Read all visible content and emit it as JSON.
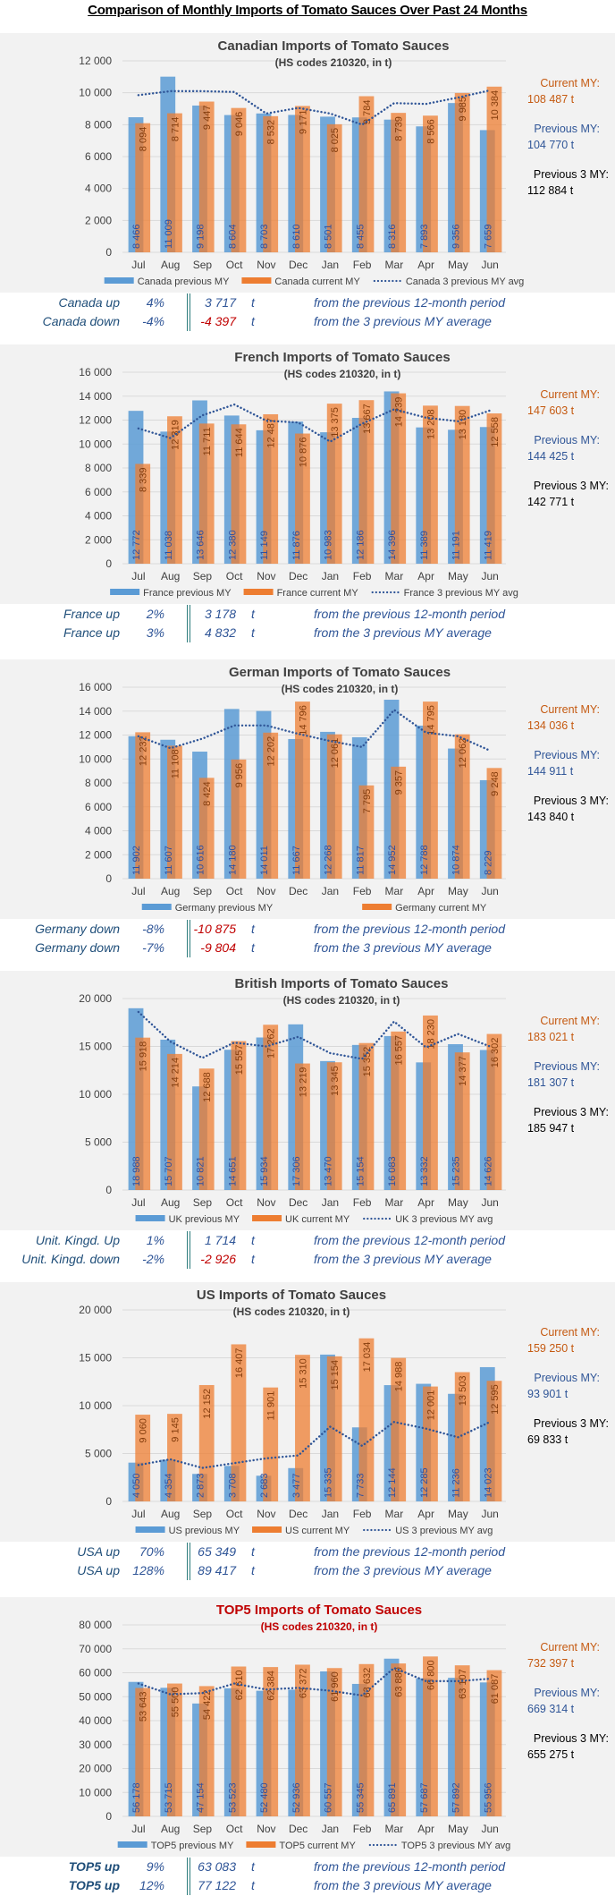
{
  "page_title": "Comparison of Monthly Imports of Tomato Sauces Over Past 24 Months",
  "colors": {
    "previous": "#5b9bd5",
    "current": "#ed7d31",
    "avg_line": "#2f5597",
    "prev_label": "#2f4f9f",
    "cur_label": "#843c0c",
    "negative": "#c00000",
    "top5_title": "#c00000"
  },
  "chart_data": [
    {
      "type": "bar",
      "title": "Canadian  Imports  of  Tomato  Sauces",
      "subtitle": "(HS codes 210320,  in t)",
      "categories": [
        "Jul",
        "Aug",
        "Sep",
        "Oct",
        "Nov",
        "Dec",
        "Jan",
        "Feb",
        "Mar",
        "Apr",
        "May",
        "Jun"
      ],
      "ylim": [
        0,
        12000
      ],
      "yticks": [
        "0",
        "2 000",
        "4 000",
        "6 000",
        "8 000",
        "10 000",
        "12 000"
      ],
      "grid": true,
      "legend": "bottom",
      "series": [
        {
          "name": "Canada previous MY",
          "type": "bar",
          "values": [
            8466,
            11009,
            9198,
            8604,
            8703,
            8610,
            8501,
            8455,
            8316,
            7893,
            9356,
            7659
          ]
        },
        {
          "name": "Canada current MY",
          "type": "bar",
          "values": [
            8094,
            8714,
            9447,
            9046,
            8532,
            9171,
            8025,
            9784,
            8739,
            8566,
            9985,
            10384
          ]
        },
        {
          "name": "Canada 3 previous MY avg",
          "type": "line",
          "values": [
            9850,
            10100,
            10100,
            10050,
            8700,
            9050,
            8700,
            8000,
            9350,
            9300,
            9700,
            10150
          ]
        }
      ]
    },
    {
      "type": "bar",
      "title": "French  Imports  of  Tomato  Sauces",
      "subtitle": "(HS codes 210320,  in t)",
      "categories": [
        "Jul",
        "Aug",
        "Sep",
        "Oct",
        "Nov",
        "Dec",
        "Jan",
        "Feb",
        "Mar",
        "Apr",
        "May",
        "Jun"
      ],
      "ylim": [
        0,
        16000
      ],
      "yticks": [
        "0",
        "2 000",
        "4 000",
        "6 000",
        "8 000",
        "10 000",
        "12 000",
        "14 000",
        "16 000"
      ],
      "grid": true,
      "legend": "bottom",
      "series": [
        {
          "name": "France previous MY",
          "type": "bar",
          "values": [
            12772,
            11038,
            13646,
            12380,
            11149,
            11876,
            10983,
            12186,
            14396,
            11389,
            11191,
            11419
          ]
        },
        {
          "name": "France current MY",
          "type": "bar",
          "values": [
            8339,
            12319,
            11711,
            11644,
            12487,
            10876,
            13375,
            13667,
            14239,
            13208,
            13180,
            12558
          ]
        },
        {
          "name": "France 3 previous MY avg",
          "type": "line",
          "values": [
            11300,
            10500,
            12400,
            13300,
            11950,
            11800,
            10200,
            11700,
            12900,
            12200,
            11900,
            12800
          ]
        }
      ]
    },
    {
      "type": "bar",
      "title": "German  Imports  of  Tomato  Sauces",
      "subtitle": "(HS codes 210320,  in t)",
      "categories": [
        "Jul",
        "Aug",
        "Sep",
        "Oct",
        "Nov",
        "Dec",
        "Jan",
        "Feb",
        "Mar",
        "Apr",
        "May",
        "Jun"
      ],
      "ylim": [
        0,
        16000
      ],
      "yticks": [
        "0",
        "2 000",
        "4 000",
        "6 000",
        "8 000",
        "10 000",
        "12 000",
        "14 000",
        "16 000"
      ],
      "grid": true,
      "legend": "bottom",
      "series": [
        {
          "name": "Germany previous MY",
          "type": "bar",
          "values": [
            11902,
            11607,
            10616,
            14180,
            14011,
            11667,
            12268,
            11817,
            14952,
            12788,
            10874,
            8229
          ]
        },
        {
          "name": "Germany current MY",
          "type": "bar",
          "values": [
            12232,
            11108,
            8424,
            9956,
            12202,
            14796,
            12061,
            7795,
            9357,
            14795,
            12062,
            9248
          ]
        },
        {
          "name": "",
          "type": "line",
          "values": [
            11900,
            10900,
            11700,
            12800,
            12800,
            12100,
            11500,
            11000,
            14100,
            12200,
            11900,
            10700
          ]
        }
      ]
    },
    {
      "type": "bar",
      "title": "British  Imports  of  Tomato  Sauces",
      "subtitle": "(HS codes 210320,  in t)",
      "categories": [
        "Jul",
        "Aug",
        "Sep",
        "Oct",
        "Nov",
        "Dec",
        "Jan",
        "Feb",
        "Mar",
        "Apr",
        "May",
        "Jun"
      ],
      "ylim": [
        0,
        20000
      ],
      "yticks": [
        "0",
        "5 000",
        "10 000",
        "15 000",
        "20 000"
      ],
      "grid": true,
      "legend": "bottom",
      "series": [
        {
          "name": "UK previous MY",
          "type": "bar",
          "values": [
            18988,
            15707,
            10821,
            14651,
            15934,
            17306,
            13470,
            15154,
            16083,
            13332,
            15235,
            14626
          ]
        },
        {
          "name": "UK current MY",
          "type": "bar",
          "values": [
            15918,
            14214,
            12688,
            15557,
            17262,
            13219,
            13345,
            15352,
            16557,
            18230,
            14377,
            16302
          ]
        },
        {
          "name": "UK 3 previous MY avg",
          "type": "line",
          "values": [
            18600,
            15500,
            13800,
            15400,
            15000,
            16000,
            14300,
            13700,
            17600,
            14900,
            16300,
            15000
          ]
        }
      ]
    },
    {
      "type": "bar",
      "title": "US  Imports  of  Tomato  Sauces",
      "subtitle": "(HS codes 210320,  in t)",
      "categories": [
        "Jul",
        "Aug",
        "Sep",
        "Oct",
        "Nov",
        "Dec",
        "Jan",
        "Feb",
        "Mar",
        "Apr",
        "May",
        "Jun"
      ],
      "ylim": [
        0,
        20000
      ],
      "yticks": [
        "0",
        "5 000",
        "10 000",
        "15 000",
        "20 000"
      ],
      "grid": true,
      "legend": "bottom",
      "series": [
        {
          "name": "US previous MY",
          "type": "bar",
          "values": [
            4050,
            4354,
            2873,
            3708,
            2683,
            3477,
            15335,
            7733,
            12144,
            12285,
            11236,
            14023
          ]
        },
        {
          "name": "US current MY",
          "type": "bar",
          "values": [
            9060,
            9145,
            12152,
            16407,
            11901,
            15310,
            15154,
            17034,
            14988,
            12001,
            13503,
            12595
          ]
        },
        {
          "name": "US 3 previous MY avg",
          "type": "line",
          "values": [
            3800,
            4400,
            3500,
            4000,
            4500,
            4800,
            7800,
            5800,
            8300,
            7600,
            6700,
            8300
          ]
        }
      ]
    },
    {
      "type": "bar",
      "title": "TOP5  Imports  of  Tomato  Sauces",
      "subtitle": "(HS codes 210320,  in t)",
      "categories": [
        "Jul",
        "Aug",
        "Sep",
        "Oct",
        "Nov",
        "Dec",
        "Jan",
        "Feb",
        "Mar",
        "Apr",
        "May",
        "Jun"
      ],
      "ylim": [
        0,
        80000
      ],
      "yticks": [
        "0",
        "10 000",
        "20 000",
        "30 000",
        "40 000",
        "50 000",
        "60 000",
        "70 000",
        "80 000"
      ],
      "grid": true,
      "legend": "bottom",
      "series": [
        {
          "name": "TOP5 previous MY",
          "type": "bar",
          "values": [
            56178,
            53715,
            47154,
            53523,
            52480,
            52936,
            60557,
            55345,
            65891,
            57687,
            57892,
            55956
          ]
        },
        {
          "name": "TOP5 current MY",
          "type": "bar",
          "values": [
            53643,
            55500,
            54422,
            62610,
            62384,
            63372,
            61960,
            63632,
            63880,
            66800,
            63107,
            61087
          ]
        },
        {
          "name": "TOP5 3 previous MY avg",
          "type": "line",
          "values": [
            55500,
            51000,
            51500,
            55500,
            53000,
            53700,
            52500,
            50500,
            62000,
            56500,
            56500,
            57500
          ]
        }
      ]
    }
  ],
  "summaries": [
    {
      "current_label": "Current MY:",
      "current_value": "108 487 t",
      "previous_label": "Previous MY:",
      "previous_value": "104 770 t",
      "prev3_label": "Previous 3 MY:",
      "prev3_value": "112 884 t",
      "stats": [
        {
          "label": "Canada up",
          "pct": "4%",
          "value": "3 717",
          "unit": "t",
          "text": "from the previous 12-month period"
        },
        {
          "label": "Canada down",
          "pct": "-4%",
          "value": "-4 397",
          "unit": "t",
          "text": "from the 3 previous MY average"
        }
      ]
    },
    {
      "current_label": "Current MY:",
      "current_value": "147 603 t",
      "previous_label": "Previous MY:",
      "previous_value": "144 425 t",
      "prev3_label": "Previous 3 MY:",
      "prev3_value": "142 771 t",
      "stats": [
        {
          "label": "France up",
          "pct": "2%",
          "value": "3 178",
          "unit": "t",
          "text": "from the previous 12-month period"
        },
        {
          "label": "France up",
          "pct": "3%",
          "value": "4 832",
          "unit": "t",
          "text": "from the 3 previous MY average"
        }
      ]
    },
    {
      "current_label": "Current MY:",
      "current_value": "134 036 t",
      "previous_label": "Previous MY:",
      "previous_value": "144 911 t",
      "prev3_label": "Previous 3 MY:",
      "prev3_value": "143 840 t",
      "stats": [
        {
          "label": "Germany down",
          "pct": "-8%",
          "value": "-10 875",
          "unit": "t",
          "text": "from the previous 12-month period"
        },
        {
          "label": "Germany down",
          "pct": "-7%",
          "value": "-9 804",
          "unit": "t",
          "text": "from the 3 previous MY average"
        }
      ]
    },
    {
      "current_label": "Current MY:",
      "current_value": "183 021 t",
      "previous_label": "Previous MY:",
      "previous_value": "181 307 t",
      "prev3_label": "Previous 3 MY:",
      "prev3_value": "185 947 t",
      "stats": [
        {
          "label": "Unit. Kingd. Up",
          "pct": "1%",
          "value": "1 714",
          "unit": "t",
          "text": "from the previous 12-month period"
        },
        {
          "label": "Unit. Kingd. down",
          "pct": "-2%",
          "value": "-2 926",
          "unit": "t",
          "text": "from the 3 previous MY average"
        }
      ]
    },
    {
      "current_label": "Current MY:",
      "current_value": "159 250 t",
      "previous_label": "Previous MY:",
      "previous_value": "93 901 t",
      "prev3_label": "Previous 3 MY:",
      "prev3_value": "69 833 t",
      "stats": [
        {
          "label": "USA up",
          "pct": "70%",
          "value": "65 349",
          "unit": "t",
          "text": "from the previous 12-month period"
        },
        {
          "label": "USA up",
          "pct": "128%",
          "value": "89 417",
          "unit": "t",
          "text": "from the 3 previous MY average"
        }
      ]
    },
    {
      "current_label": "Current MY:",
      "current_value": "732 397 t",
      "previous_label": "Previous MY:",
      "previous_value": "669 314 t",
      "prev3_label": "Previous 3 MY:",
      "prev3_value": "655 275 t",
      "stats": [
        {
          "label": "TOP5 up",
          "pct": "9%",
          "value": "63 083",
          "unit": "t",
          "text": "from the previous 12-month period"
        },
        {
          "label": "TOP5 up",
          "pct": "12%",
          "value": "77 122",
          "unit": "t",
          "text": "from the 3 previous MY average"
        }
      ]
    }
  ]
}
